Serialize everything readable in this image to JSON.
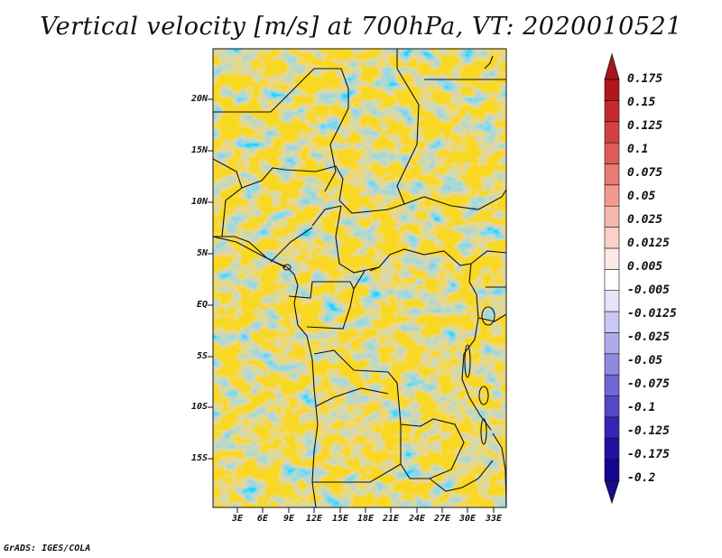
{
  "title": "Vertical velocity [m/s] at 700hPa, VT: 2020010521",
  "credit": "GrADS: IGES/COLA",
  "map": {
    "variable": "Vertical velocity",
    "units": "m/s",
    "level": "700hPa",
    "valid_time": "2020010521",
    "lat_labels": [
      "20N",
      "15N",
      "10N",
      "5N",
      "EQ",
      "5S",
      "10S",
      "15S"
    ],
    "lon_labels": [
      "3E",
      "6E",
      "9E",
      "12E",
      "15E",
      "18E",
      "21E",
      "24E",
      "27E",
      "30E",
      "33E"
    ]
  },
  "colorbar": {
    "labels": [
      "0.175",
      "0.15",
      "0.125",
      "0.1",
      "0.075",
      "0.05",
      "0.025",
      "0.0125",
      "0.005",
      "-0.005",
      "-0.0125",
      "-0.025",
      "-0.05",
      "-0.075",
      "-0.1",
      "-0.125",
      "-0.175",
      "-0.2"
    ],
    "colors": [
      "#b3161a",
      "#c62a2a",
      "#d4413f",
      "#e05b55",
      "#ea7b72",
      "#f29a90",
      "#f6b6ad",
      "#fad0c8",
      "#fde8e3",
      "#ffffff",
      "#e4e3fa",
      "#c9c7f3",
      "#aeaaec",
      "#9089e2",
      "#7067d6",
      "#5248c8",
      "#3726b4",
      "#2310a0",
      "#150690"
    ],
    "top_arrow_color": "#a8141a",
    "bottom_arrow_color": "#1a0a8c"
  }
}
